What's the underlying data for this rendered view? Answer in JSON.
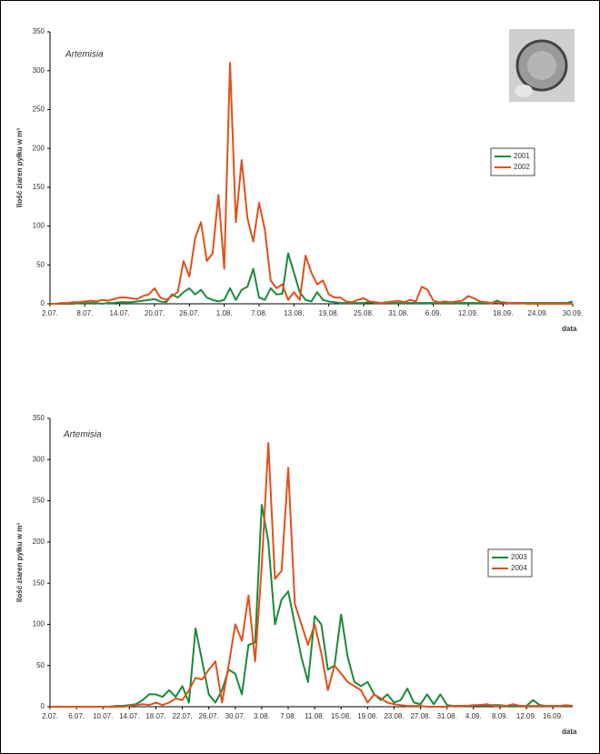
{
  "chart_data": [
    {
      "type": "line",
      "title": "Artemisia",
      "y_label": "Ilość ziaren pyłku w m³",
      "x_label": "data",
      "categories": [
        "2.07.",
        null,
        null,
        null,
        null,
        null,
        "8.07.",
        null,
        null,
        null,
        null,
        null,
        "14.07.",
        null,
        null,
        null,
        null,
        null,
        "20.07.",
        null,
        null,
        null,
        null,
        null,
        "26.07.",
        null,
        null,
        null,
        null,
        null,
        "1.08.",
        null,
        null,
        null,
        null,
        null,
        "7.08.",
        null,
        null,
        null,
        null,
        null,
        "13.08.",
        null,
        null,
        null,
        null,
        null,
        "19.08.",
        null,
        null,
        null,
        null,
        null,
        "25.08.",
        null,
        null,
        null,
        null,
        null,
        "31.08.",
        null,
        null,
        null,
        null,
        null,
        "6.09.",
        null,
        null,
        null,
        null,
        null,
        "12.09.",
        null,
        null,
        null,
        null,
        null,
        "18.09.",
        null,
        null,
        null,
        null,
        null,
        "24.09.",
        null,
        null,
        null,
        null,
        null,
        "30.09."
      ],
      "series": [
        {
          "name": "2001",
          "color": "#1a8a3a",
          "values": [
            0,
            0,
            0,
            0,
            0,
            1,
            1,
            1,
            1,
            0,
            1,
            1,
            2,
            2,
            2,
            3,
            4,
            5,
            6,
            3,
            2,
            12,
            8,
            15,
            20,
            12,
            18,
            8,
            5,
            3,
            5,
            20,
            5,
            18,
            22,
            45,
            8,
            5,
            20,
            12,
            13,
            65,
            40,
            15,
            5,
            3,
            15,
            5,
            3,
            2,
            1,
            1,
            1,
            1,
            1,
            2,
            1,
            1,
            1,
            1,
            1,
            1,
            1,
            1,
            1,
            1,
            1,
            1,
            1,
            1,
            1,
            1,
            1,
            1,
            1,
            1,
            1,
            4,
            1,
            1,
            1,
            1,
            1,
            1,
            1,
            1,
            1,
            1,
            1,
            1,
            3
          ]
        },
        {
          "name": "2002",
          "color": "#e0501a",
          "values": [
            0,
            0,
            1,
            1,
            2,
            2,
            3,
            4,
            3,
            5,
            4,
            6,
            8,
            8,
            7,
            6,
            10,
            12,
            20,
            8,
            5,
            10,
            15,
            55,
            35,
            85,
            105,
            55,
            65,
            140,
            45,
            310,
            105,
            185,
            110,
            80,
            130,
            95,
            30,
            20,
            25,
            5,
            15,
            5,
            62,
            40,
            25,
            30,
            12,
            8,
            8,
            3,
            2,
            5,
            7,
            3,
            2,
            1,
            2,
            3,
            4,
            2,
            5,
            3,
            22,
            18,
            4,
            2,
            3,
            2,
            3,
            4,
            10,
            7,
            3,
            2,
            1,
            2,
            2,
            1,
            1,
            1,
            0,
            0,
            0,
            0,
            0,
            0,
            0,
            0,
            0
          ]
        }
      ],
      "ylim": [
        0,
        350
      ],
      "yticks": [
        0,
        50,
        100,
        150,
        200,
        250,
        300,
        350
      ],
      "legend_position": "right",
      "grid": false
    },
    {
      "type": "line",
      "title": "Artemisia",
      "y_label": "Ilość ziaren pyłku w m³",
      "x_label": "data",
      "categories": [
        "2.07.",
        null,
        null,
        null,
        "6.07.",
        null,
        null,
        null,
        "10.07.",
        null,
        null,
        null,
        "14.07.",
        null,
        null,
        null,
        "18.07.",
        null,
        null,
        null,
        "22.07.",
        null,
        null,
        null,
        "26.07.",
        null,
        null,
        null,
        "30.07.",
        null,
        null,
        null,
        "3.08.",
        null,
        null,
        null,
        "7.08.",
        null,
        null,
        null,
        "11.08.",
        null,
        null,
        null,
        "15.08.",
        null,
        null,
        null,
        "19.08.",
        null,
        null,
        null,
        "23.08.",
        null,
        null,
        null,
        "27.08.",
        null,
        null,
        null,
        "31.08.",
        null,
        null,
        null,
        "4.09.",
        null,
        null,
        null,
        "8.09.",
        null,
        null,
        null,
        "12.09.",
        null,
        null,
        null,
        "16.09.",
        null,
        null,
        null
      ],
      "series": [
        {
          "name": "2003",
          "color": "#1a8a3a",
          "values": [
            0,
            0,
            0,
            0,
            0,
            0,
            0,
            0,
            0,
            0,
            1,
            1,
            2,
            3,
            8,
            15,
            15,
            12,
            20,
            12,
            25,
            5,
            95,
            55,
            15,
            5,
            20,
            45,
            40,
            15,
            75,
            78,
            245,
            200,
            100,
            130,
            140,
            100,
            60,
            30,
            110,
            100,
            45,
            50,
            112,
            60,
            30,
            25,
            30,
            15,
            8,
            15,
            5,
            8,
            22,
            5,
            3,
            15,
            3,
            15,
            2,
            1,
            1,
            1,
            1,
            2,
            2,
            2,
            2,
            1,
            1,
            1,
            1,
            8,
            2,
            1,
            1,
            1,
            1,
            1
          ]
        },
        {
          "name": "2004",
          "color": "#e0501a",
          "values": [
            0,
            0,
            0,
            0,
            0,
            0,
            0,
            0,
            0,
            0,
            0,
            0,
            1,
            2,
            3,
            2,
            5,
            2,
            5,
            10,
            8,
            20,
            35,
            33,
            45,
            55,
            5,
            50,
            100,
            80,
            135,
            55,
            170,
            320,
            155,
            165,
            290,
            125,
            100,
            75,
            100,
            65,
            20,
            50,
            40,
            30,
            25,
            20,
            5,
            15,
            10,
            5,
            3,
            2,
            1,
            1,
            1,
            0,
            0,
            0,
            0,
            1,
            1,
            1,
            2,
            2,
            3,
            1,
            1,
            1,
            3,
            1,
            1,
            1,
            1,
            1,
            1,
            1,
            2,
            1
          ]
        }
      ],
      "ylim": [
        0,
        350
      ],
      "yticks": [
        0,
        50,
        100,
        150,
        200,
        250,
        300,
        350
      ],
      "legend_position": "right",
      "grid": false
    }
  ]
}
